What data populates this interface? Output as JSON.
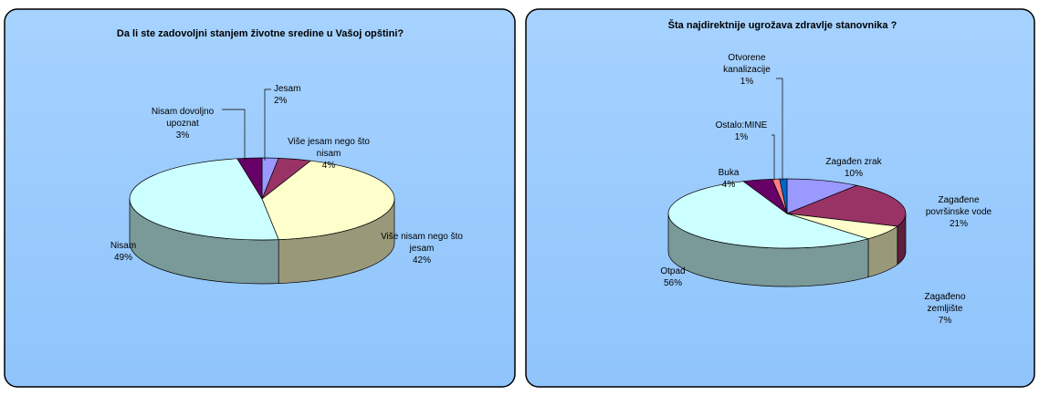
{
  "chart_data": [
    {
      "type": "pie",
      "title": "Da li ste zadovoljni stanjem životne sredine u Vašoj opštini?",
      "categories": [
        "Jesam",
        "Više jesam nego što\nnisam",
        "Više nisam nego što\njesam",
        "Nisam",
        "Nisam dovoljno\nupoznat"
      ],
      "values": [
        2,
        4,
        42,
        49,
        3
      ],
      "value_labels": [
        "2%",
        "4%",
        "42%",
        "49%",
        "3%"
      ],
      "colors": [
        "#9999ff",
        "#993366",
        "#ffffcc",
        "#ccffff",
        "#660066"
      ]
    },
    {
      "type": "pie",
      "title": "Šta  najdirektnije ugrožava zdravlje stanovnika ?",
      "categories": [
        "Zagađen zrak",
        "Zagađene\npovršinske vode",
        "Zagađeno\nzemljište",
        "Otpad",
        "Buka",
        "Ostalo:MINE",
        "Otvorene\nkanalizacije"
      ],
      "values": [
        10,
        21,
        7,
        56,
        4,
        1,
        1
      ],
      "value_labels": [
        "10%",
        "21%",
        "7%",
        "56%",
        "4%",
        "1%",
        "1%"
      ],
      "colors": [
        "#9999ff",
        "#993366",
        "#ffffcc",
        "#ccffff",
        "#660066",
        "#ff8080",
        "#0066cc"
      ]
    }
  ]
}
